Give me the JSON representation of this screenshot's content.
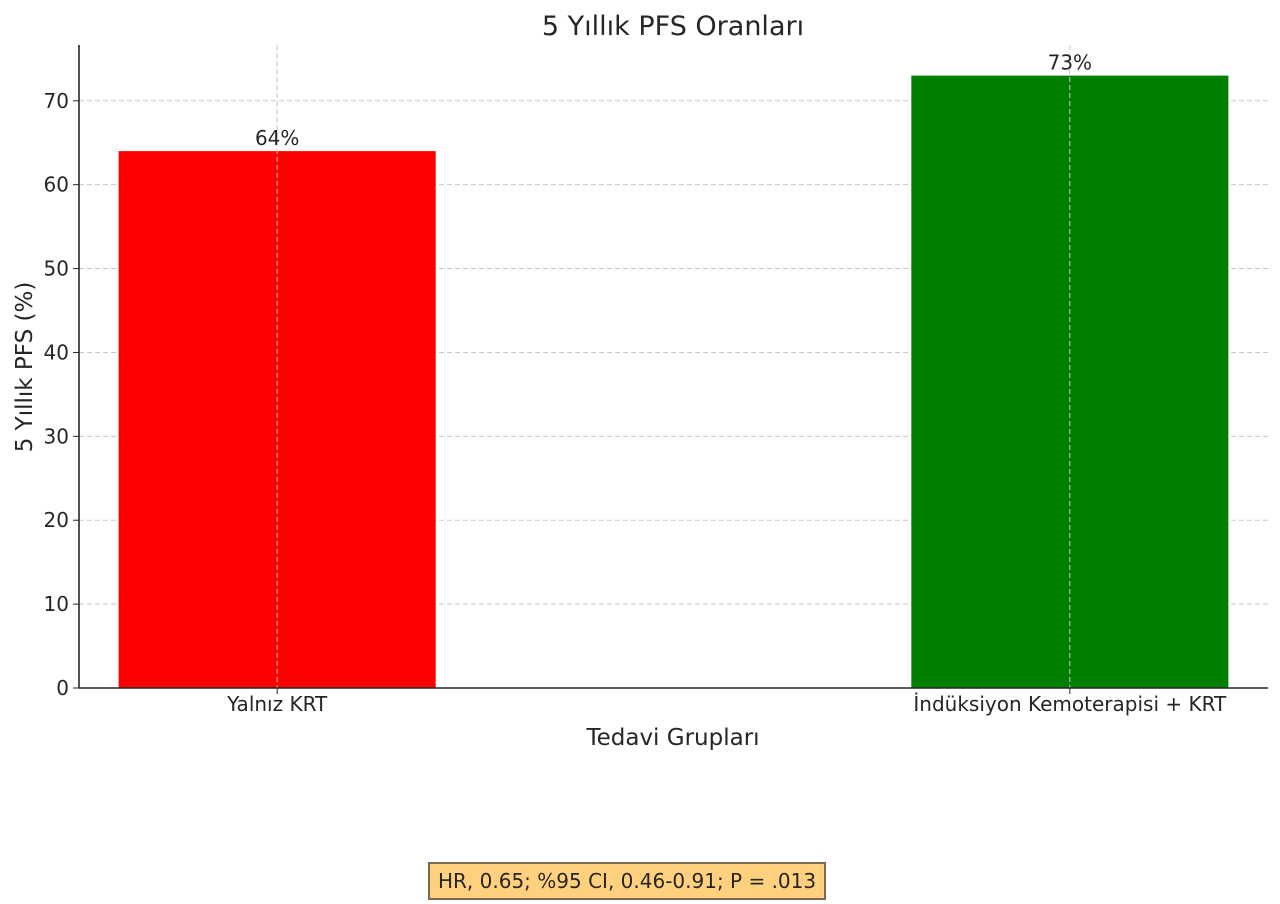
{
  "chart_data": {
    "type": "bar",
    "title": "5 Yıllık PFS Oranları",
    "xlabel": "Tedavi Grupları",
    "ylabel": "5 Yıllık PFS (%)",
    "categories": [
      "Yalnız KRT",
      "İndüksiyon Kemoterapisi + KRT"
    ],
    "values": [
      64,
      73
    ],
    "value_labels": [
      "64%",
      "73%"
    ],
    "colors": [
      "#ff0000",
      "#008000"
    ],
    "ylim": [
      0,
      76.65
    ],
    "yticks": [
      0,
      10,
      20,
      30,
      40,
      50,
      60,
      70
    ],
    "grid": true,
    "annotation": "HR, 0.65; %95 CI, 0.46-0.91; P = .013"
  }
}
